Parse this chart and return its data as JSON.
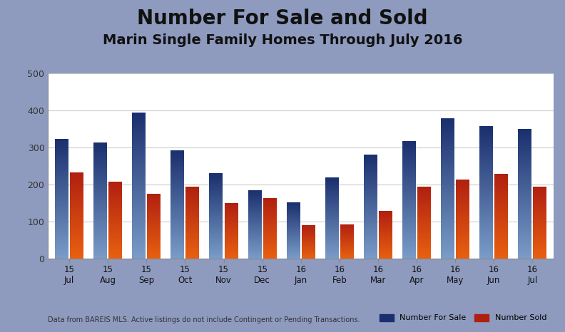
{
  "title": "Number For Sale and Sold",
  "subtitle": "Marin Single Family Homes Through July 2016",
  "categories": [
    [
      "15",
      "Jul"
    ],
    [
      "15",
      "Aug"
    ],
    [
      "15",
      "Sep"
    ],
    [
      "15",
      "Oct"
    ],
    [
      "15",
      "Nov"
    ],
    [
      "15",
      "Dec"
    ],
    [
      "16",
      "Jan"
    ],
    [
      "16",
      "Feb"
    ],
    [
      "16",
      "Mar"
    ],
    [
      "16",
      "Apr"
    ],
    [
      "16",
      "May"
    ],
    [
      "16",
      "Jun"
    ],
    [
      "16",
      "Jul"
    ]
  ],
  "for_sale": [
    322,
    313,
    393,
    292,
    231,
    185,
    152,
    218,
    281,
    316,
    377,
    356,
    350
  ],
  "sold": [
    232,
    208,
    175,
    193,
    149,
    163,
    91,
    93,
    129,
    193,
    214,
    228,
    194
  ],
  "for_sale_color_top": "#1a2f6e",
  "for_sale_color_bot": "#7a9cc8",
  "sold_color_top": "#b02010",
  "sold_color_bot": "#e86010",
  "background_outer": "#8e9bbf",
  "background_plot": "#ffffff",
  "ylim": [
    0,
    500
  ],
  "yticks": [
    0,
    100,
    200,
    300,
    400,
    500
  ],
  "grid_color": "#cccccc",
  "title_fontsize": 20,
  "subtitle_fontsize": 14,
  "footnote": "Data from BAREIS MLS. Active listings do not include Contingent or Pending Transactions.",
  "legend_for_sale": "Number For Sale",
  "legend_sold": "Number Sold",
  "bar_width": 0.35,
  "bar_gap": 0.04
}
